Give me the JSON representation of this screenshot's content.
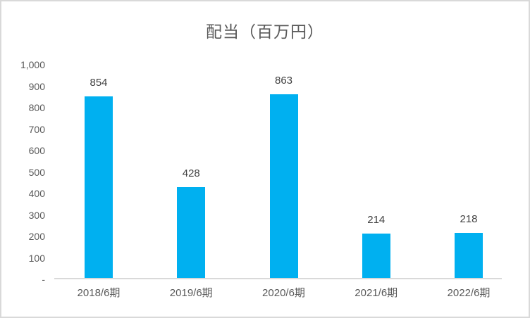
{
  "chart_data": {
    "type": "bar",
    "title": "配当（百万円）",
    "categories": [
      "2018/6期",
      "2019/6期",
      "2020/6期",
      "2021/6期",
      "2022/6期"
    ],
    "values": [
      854,
      428,
      863,
      214,
      218
    ],
    "data_labels": [
      "854",
      "428",
      "863",
      "214",
      "218"
    ],
    "y_ticks": [
      {
        "label": "1,000",
        "value": 1000
      },
      {
        "label": "900",
        "value": 900
      },
      {
        "label": "800",
        "value": 800
      },
      {
        "label": "700",
        "value": 700
      },
      {
        "label": "600",
        "value": 600
      },
      {
        "label": "500",
        "value": 500
      },
      {
        "label": "400",
        "value": 400
      },
      {
        "label": "300",
        "value": 300
      },
      {
        "label": "200",
        "value": 200
      },
      {
        "label": "100",
        "value": 100
      },
      {
        "label": "-",
        "value": 0
      }
    ],
    "ylim": [
      0,
      1000
    ],
    "xlabel": "",
    "ylabel": "",
    "grid": false,
    "legend": "none",
    "colors": {
      "bar": "#00B0F0",
      "axis_text": "#595959",
      "data_label": "#404040",
      "title_text": "#595959",
      "axis_line": "#D9D9D9",
      "chart_border": "#D9D9D9"
    }
  }
}
